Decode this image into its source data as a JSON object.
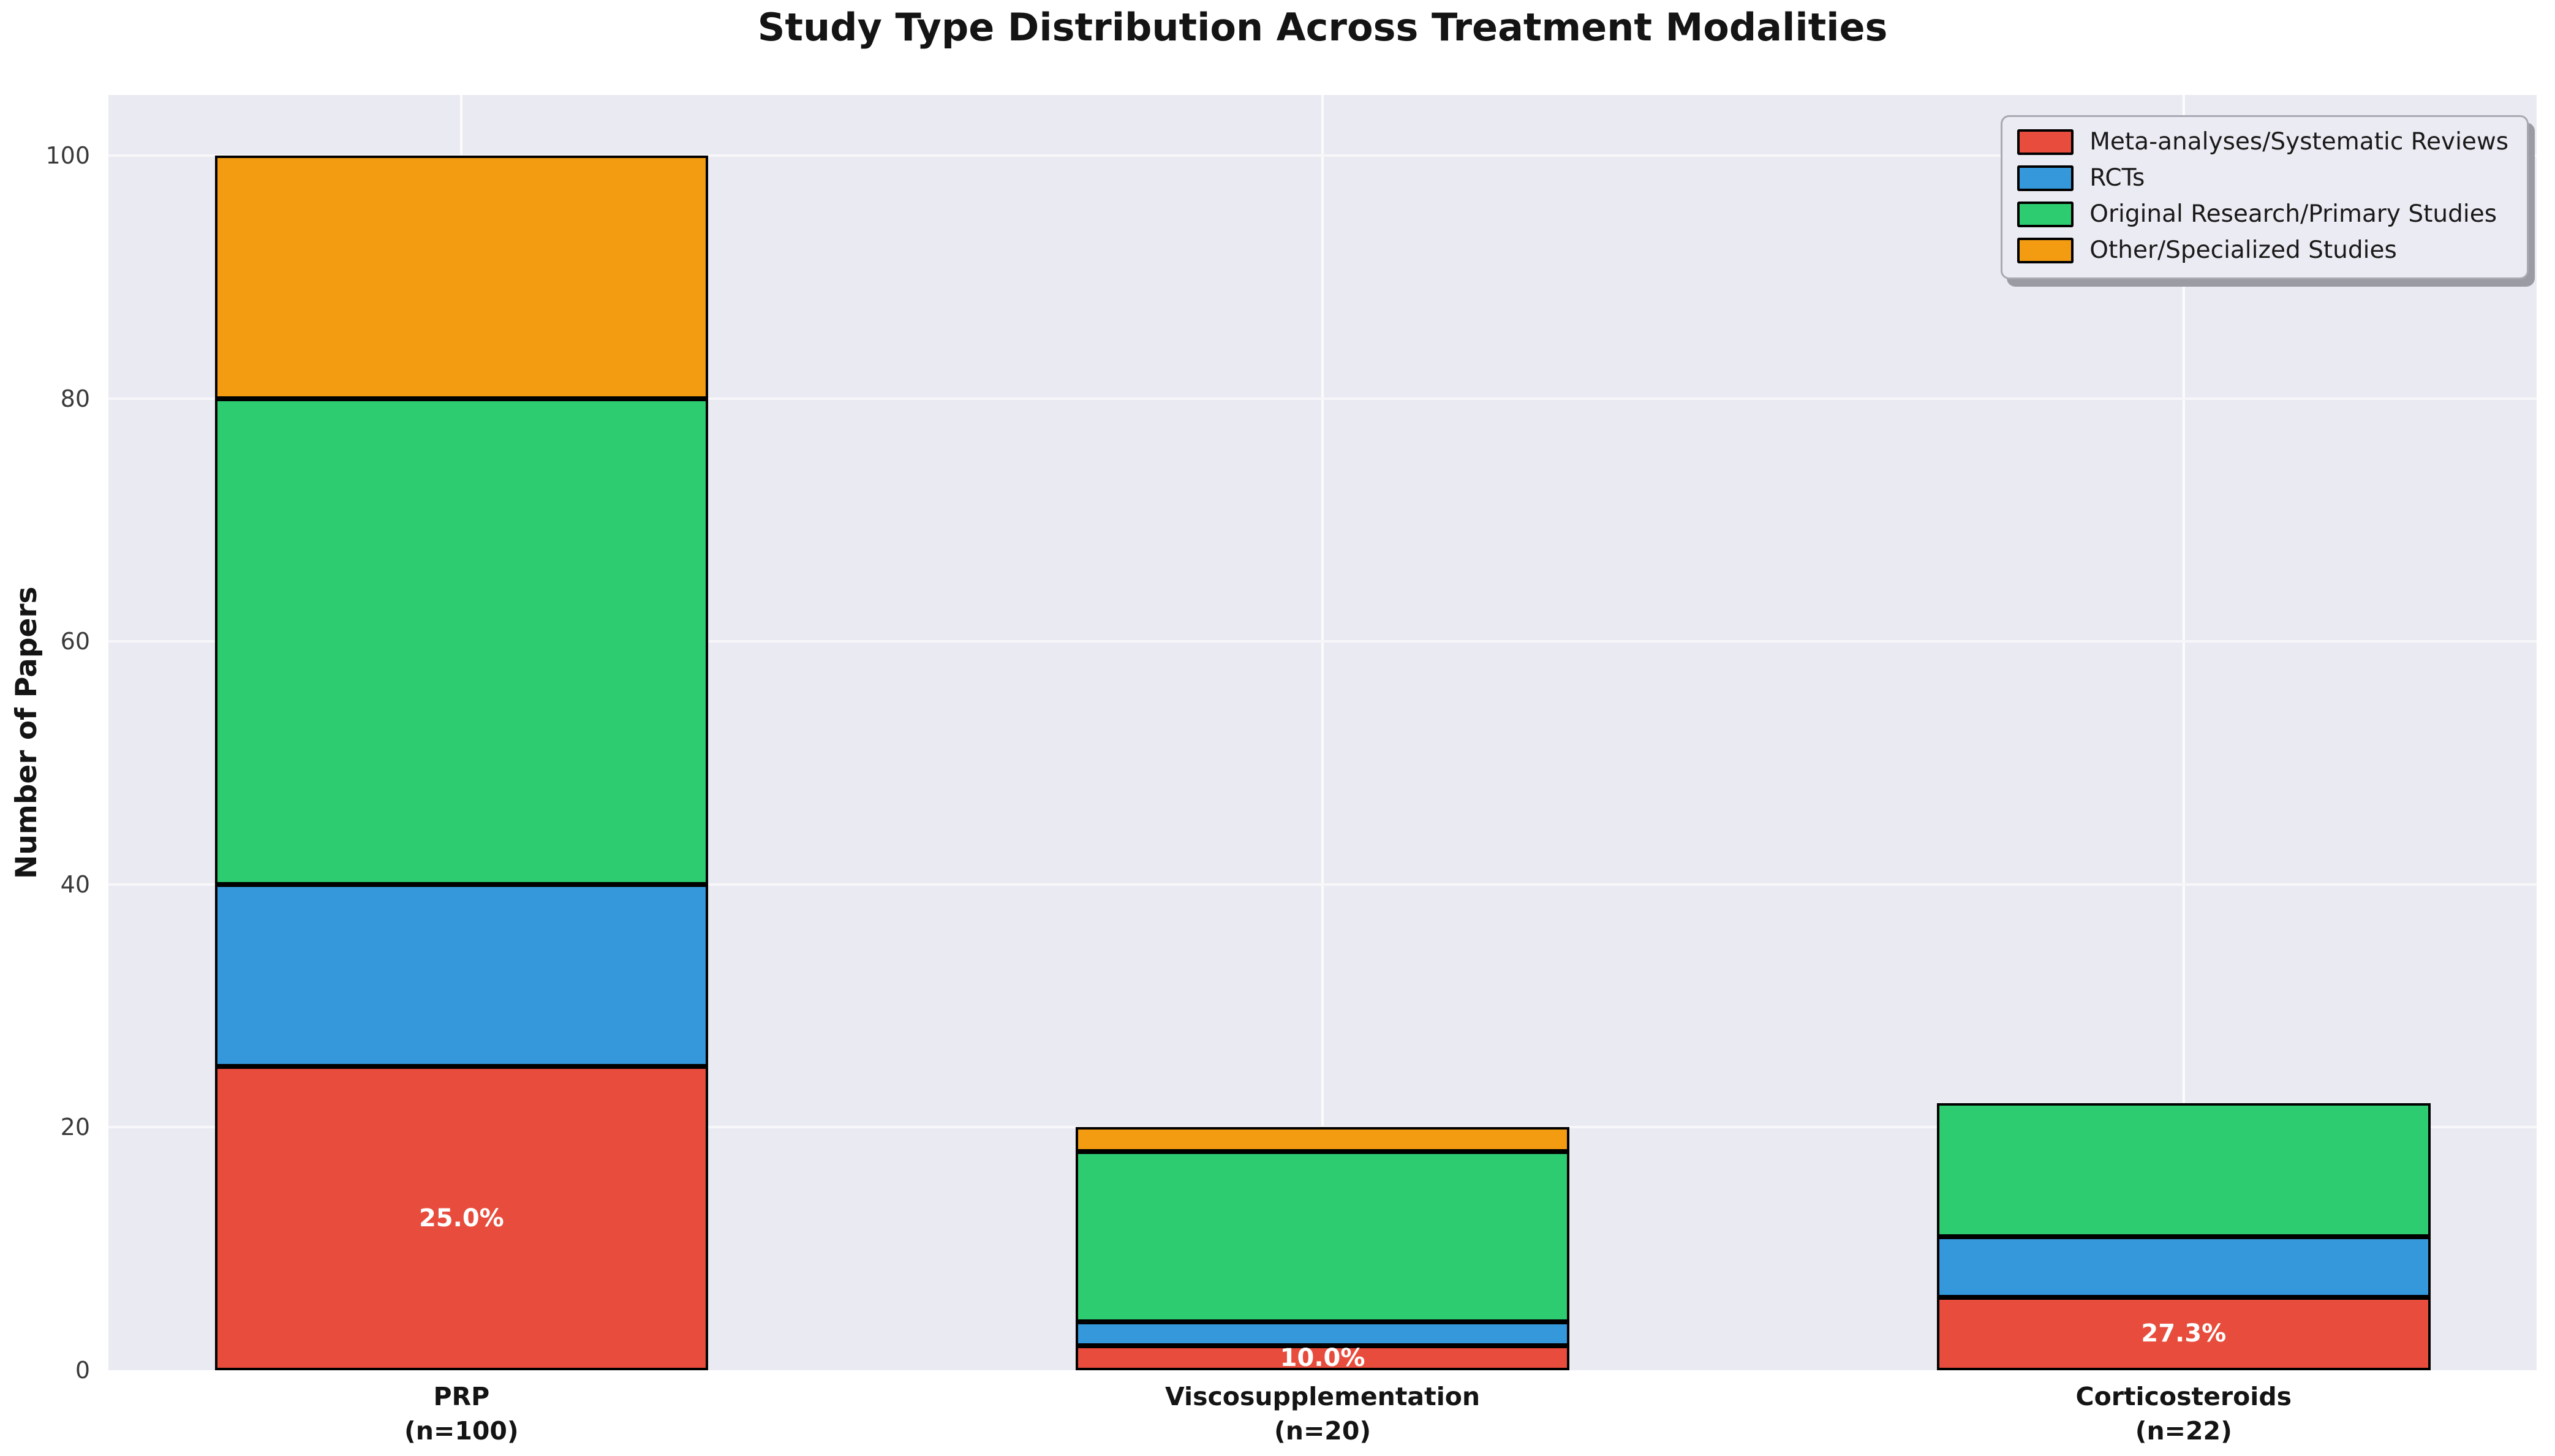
{
  "chart_data": {
    "type": "bar",
    "stacked": true,
    "title": "Study Type Distribution Across Treatment Modalities",
    "xlabel": "",
    "ylabel": "Number of Papers",
    "ylim": [
      0,
      105
    ],
    "xlim": [
      -0.41,
      2.41
    ],
    "bar_width": 0.573,
    "yticks": [
      0,
      20,
      40,
      60,
      80,
      100
    ],
    "grid": true,
    "legend_position": "upper right",
    "plot_background": "#eaeaf2",
    "edge_color": "#000000",
    "categories": [
      {
        "label": "PRP",
        "sublabel": "(n=100)"
      },
      {
        "label": "Viscosupplementation",
        "sublabel": "(n=20)"
      },
      {
        "label": "Corticosteroids",
        "sublabel": "(n=22)"
      }
    ],
    "series": [
      {
        "name": "Meta-analyses/Systematic Reviews",
        "color": "#e74c3c",
        "values": [
          25,
          2,
          6
        ],
        "labels": [
          "25.0%",
          "10.0%",
          "27.3%"
        ]
      },
      {
        "name": "RCTs",
        "color": "#3498db",
        "values": [
          15,
          2,
          5
        ],
        "labels": [
          null,
          null,
          null
        ]
      },
      {
        "name": "Original Research/Primary Studies",
        "color": "#2ecc71",
        "values": [
          40,
          14,
          11
        ],
        "labels": [
          null,
          null,
          null
        ]
      },
      {
        "name": "Other/Specialized Studies",
        "color": "#f39c12",
        "values": [
          20,
          2,
          0
        ],
        "labels": [
          null,
          null,
          null
        ]
      }
    ]
  }
}
